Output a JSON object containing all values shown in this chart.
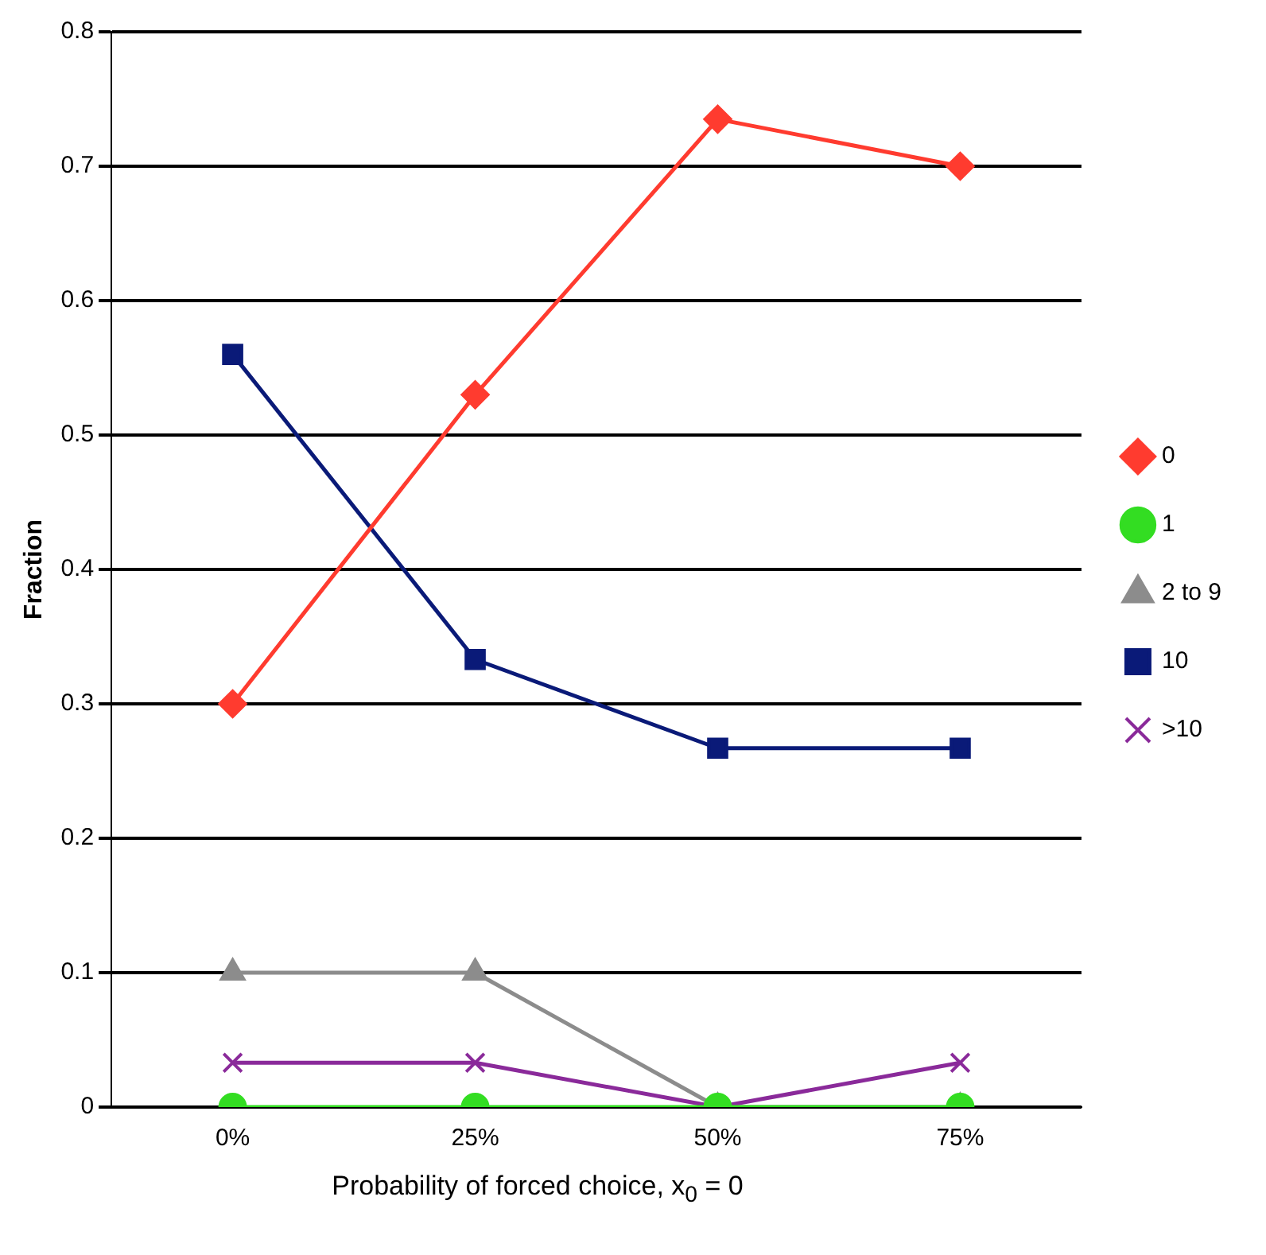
{
  "chart_data": {
    "type": "line",
    "xlabel": "Probability of forced choice, x$_{0}$ = 0",
    "ylabel": "Fraction",
    "categories": [
      "0%",
      "25%",
      "50%",
      "75%"
    ],
    "series": [
      {
        "name": "0",
        "color": "#ff3b2f",
        "marker": "diamond",
        "values": [
          0.3,
          0.53,
          0.735,
          0.7
        ]
      },
      {
        "name": "1",
        "color": "#33dd22",
        "marker": "circle",
        "values": [
          0,
          0,
          0,
          0
        ]
      },
      {
        "name": "2 to 9",
        "color": "#8c8c8c",
        "marker": "triangle",
        "values": [
          0.1,
          0.1,
          0,
          0
        ]
      },
      {
        "name": "10",
        "color": "#0a1a78",
        "marker": "square",
        "values": [
          0.56,
          0.333,
          0.267,
          0.267
        ]
      },
      {
        "name": ">10",
        "color": "#8a2a9a",
        "marker": "cross",
        "values": [
          0.033,
          0.033,
          0,
          0.033
        ]
      }
    ],
    "ylim": [
      0,
      0.8
    ],
    "yticks": [
      0,
      0.1,
      0.2,
      0.3,
      0.4,
      0.5,
      0.6,
      0.7,
      0.8
    ],
    "grid": "y",
    "legend": "right"
  }
}
